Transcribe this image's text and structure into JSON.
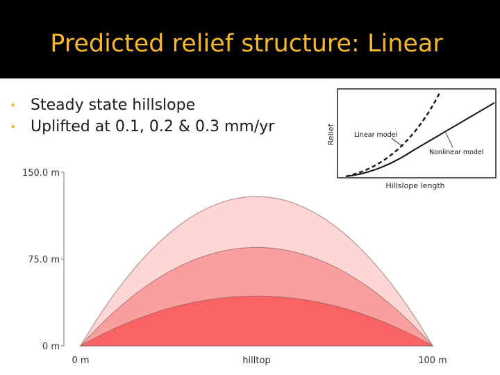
{
  "slide": {
    "title": "Predicted relief structure: Linear",
    "bullets": [
      "Steady state hillslope",
      "Uplifted at 0.1, 0.2 & 0.3 mm/yr"
    ]
  },
  "colors": {
    "title_bar": "#000000",
    "title_text": "#f5b82e",
    "bullet_marker": "#f5b82e",
    "uplift_0_3": "#fdd6d6",
    "uplift_0_2": "#fb9e9e",
    "uplift_0_1": "#f86464"
  },
  "chart_data": [
    {
      "type": "area",
      "y_tick_labels": [
        "0 m",
        "75.0 m",
        "150.0 m"
      ],
      "y_ticks": [
        0,
        75,
        150
      ],
      "ylim": [
        0,
        150
      ],
      "x_tick_labels": [
        "0 m",
        "hilltop",
        "100 m"
      ],
      "x_ticks": [
        0,
        50,
        100
      ],
      "xlim": [
        0,
        100
      ],
      "grid": false,
      "series": [
        {
          "peak": 129,
          "color": "#fdd6d6"
        },
        {
          "peak": 85,
          "color": "#fb9e9e"
        },
        {
          "peak": 43,
          "color": "#f86464"
        }
      ]
    },
    {
      "type": "line",
      "xlabel": "Hillslope length",
      "ylabel": "Relief",
      "annotations": [
        "Linear model",
        "Nonlinear model"
      ]
    }
  ]
}
